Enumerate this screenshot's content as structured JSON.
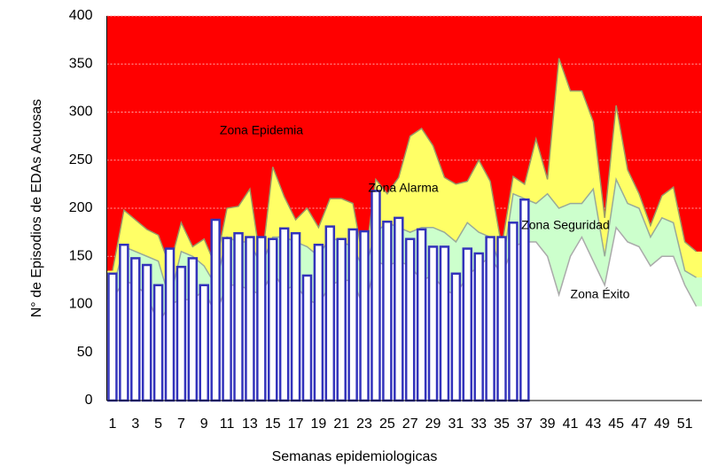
{
  "chart_data": {
    "type": "epidemic_channel",
    "xlabel": "Semanas  epidemiologicas",
    "ylabel": "N° de Episodios de EDAs Acuosas",
    "categories": [
      "1",
      null,
      "3",
      null,
      "5",
      null,
      "7",
      null,
      "9",
      null,
      "11",
      null,
      "13",
      null,
      "15",
      null,
      "17",
      null,
      "19",
      null,
      "21",
      null,
      "23",
      null,
      "25",
      null,
      "27",
      null,
      "29",
      null,
      "31",
      null,
      "33",
      null,
      "35",
      null,
      "37",
      null,
      "39",
      null,
      "41",
      null,
      "43",
      null,
      "45",
      null,
      "47",
      null,
      "49",
      null,
      "51",
      null
    ],
    "ylim": [
      0,
      400
    ],
    "yticks": [
      0,
      50,
      100,
      150,
      200,
      250,
      300,
      350,
      400
    ],
    "grid": true,
    "background_color": "#ff0000",
    "annotations": [
      "Zona Epidemia"
    ],
    "areas": [
      {
        "name": "Zona Alarma",
        "color": "#ffff66",
        "line_color": "#999966",
        "values": [
          135,
          198,
          188,
          178,
          172,
          140,
          185,
          160,
          168,
          140,
          200,
          202,
          220,
          140,
          243,
          212,
          188,
          200,
          180,
          210,
          210,
          205,
          140,
          230,
          215,
          232,
          275,
          283,
          265,
          232,
          225,
          228,
          250,
          228,
          160,
          233,
          225,
          272,
          230,
          356,
          322,
          322,
          290,
          190,
          307,
          240,
          215,
          182,
          213,
          222,
          165,
          155
        ]
      },
      {
        "name": "Zona Seguridad",
        "color": "#ccffcc",
        "line_color": "#99aa99",
        "values": [
          115,
          160,
          155,
          150,
          145,
          105,
          155,
          150,
          140,
          120,
          170,
          165,
          165,
          140,
          170,
          170,
          165,
          160,
          150,
          170,
          165,
          160,
          135,
          175,
          185,
          180,
          175,
          180,
          180,
          175,
          165,
          185,
          175,
          170,
          135,
          215,
          210,
          205,
          215,
          200,
          205,
          205,
          220,
          150,
          230,
          205,
          200,
          170,
          190,
          185,
          135,
          128
        ]
      },
      {
        "name": "Zona Éxito",
        "color": "#ffffff",
        "line_color": "#aaaaaa",
        "values": [
          105,
          125,
          120,
          110,
          80,
          100,
          105,
          105,
          115,
          90,
          120,
          120,
          115,
          110,
          135,
          115,
          120,
          105,
          100,
          120,
          125,
          125,
          95,
          145,
          140,
          145,
          140,
          125,
          130,
          115,
          110,
          130,
          140,
          150,
          130,
          160,
          165,
          165,
          150,
          110,
          150,
          170,
          145,
          120,
          180,
          165,
          160,
          140,
          150,
          150,
          120,
          98
        ]
      }
    ],
    "bars": {
      "color": "#3333bb",
      "fill": "#ffffff",
      "values": [
        132,
        162,
        148,
        141,
        120,
        158,
        139,
        148,
        120,
        188,
        169,
        174,
        170,
        170,
        168,
        179,
        174,
        130,
        162,
        181,
        168,
        178,
        176,
        218,
        186,
        190,
        168,
        178,
        160,
        160,
        132,
        158,
        153,
        170,
        170,
        185,
        209
      ]
    }
  }
}
